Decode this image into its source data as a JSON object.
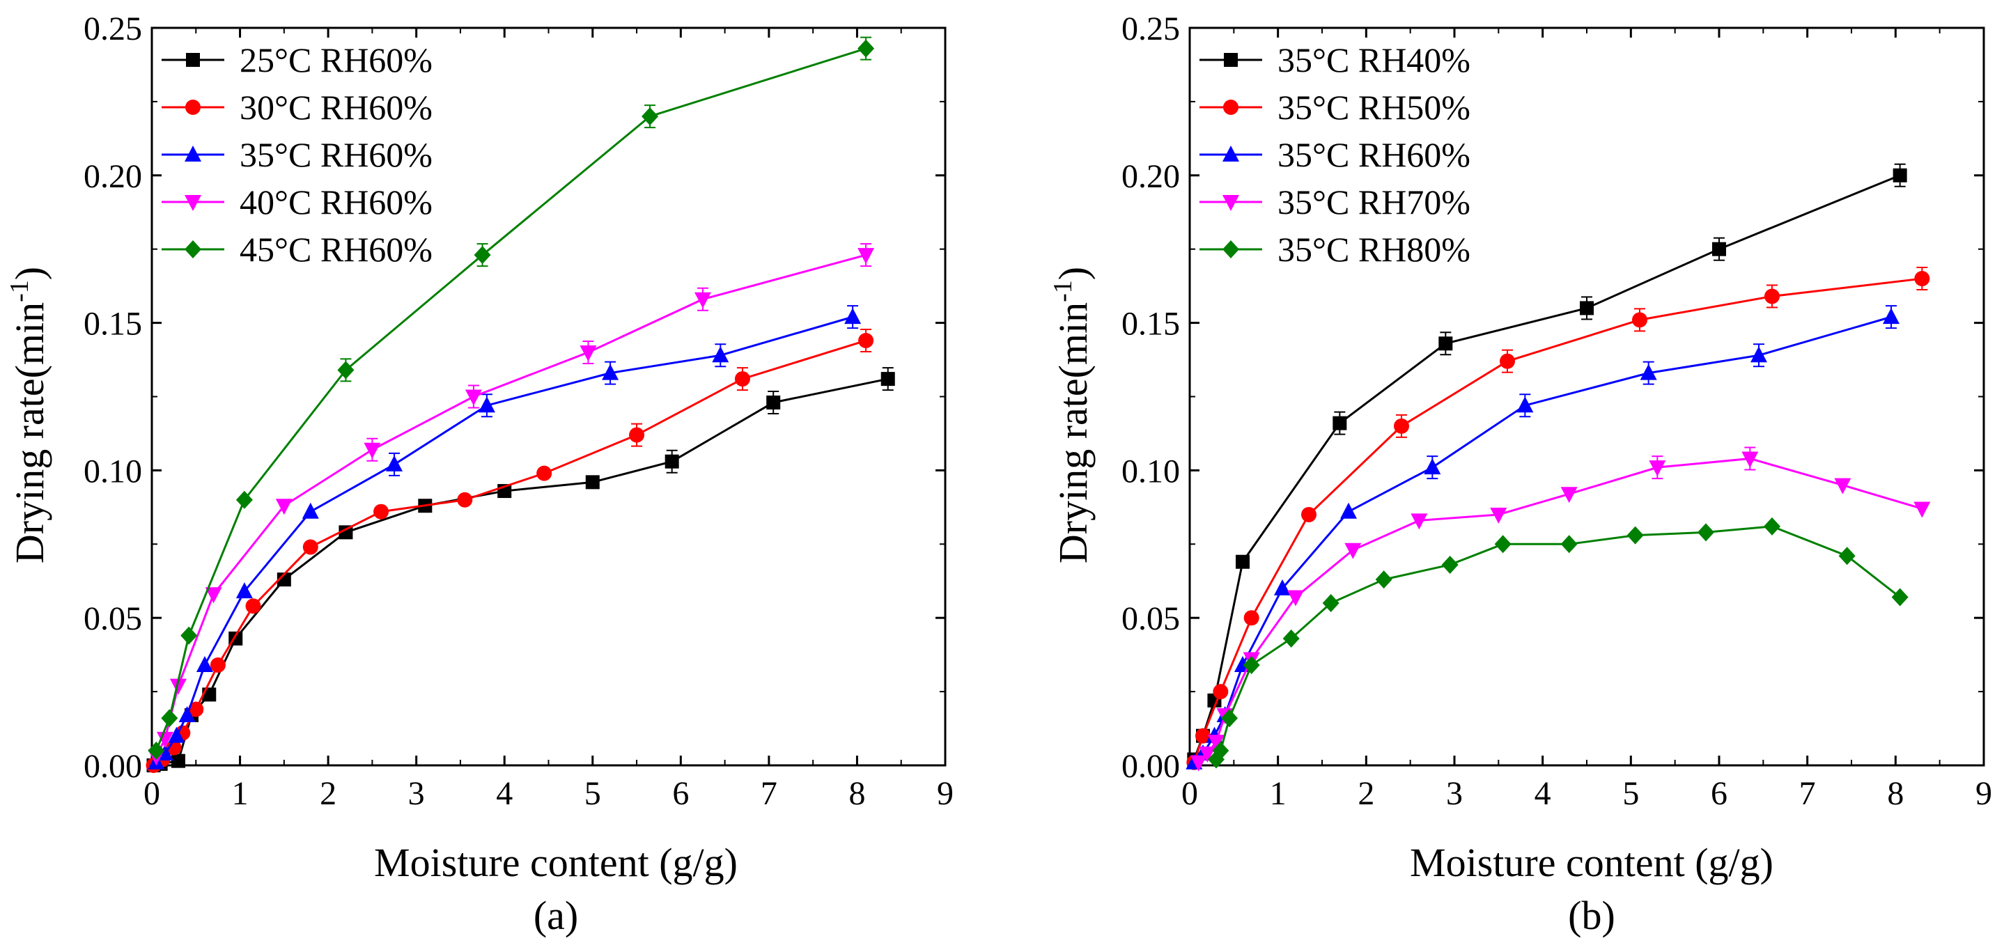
{
  "chart_data": [
    {
      "type": "line",
      "panel_label": "(a)",
      "xlabel": "Moisture content (g/g)",
      "ylabel_main": "Drying rate(min",
      "ylabel_sup": "-1",
      "ylabel_close": ")",
      "xlim": [
        0,
        9
      ],
      "ylim": [
        0,
        0.25
      ],
      "x_ticks": [
        "0",
        "1",
        "2",
        "3",
        "4",
        "5",
        "6",
        "7",
        "8",
        "9"
      ],
      "y_ticks": [
        "0.00",
        "0.05",
        "0.10",
        "0.15",
        "0.20",
        "0.25"
      ],
      "legend_position": "top-left",
      "series": [
        {
          "name": "25°C RH60%",
          "color": "#000000",
          "marker": "square",
          "x": [
            0.02,
            0.1,
            0.3,
            0.45,
            0.65,
            0.95,
            1.5,
            2.2,
            3.1,
            4.0,
            5.0,
            5.9,
            7.05,
            8.35
          ],
          "y": [
            0.0,
            0.0005,
            0.0015,
            0.017,
            0.024,
            0.043,
            0.063,
            0.079,
            0.088,
            0.093,
            0.096,
            0.103,
            0.123,
            0.131
          ]
        },
        {
          "name": "30°C RH60%",
          "color": "#ff0000",
          "marker": "circle",
          "x": [
            0.02,
            0.12,
            0.25,
            0.35,
            0.5,
            0.75,
            1.15,
            1.8,
            2.6,
            3.55,
            4.45,
            5.5,
            6.7,
            8.1
          ],
          "y": [
            0.0,
            0.002,
            0.006,
            0.011,
            0.019,
            0.034,
            0.054,
            0.074,
            0.086,
            0.09,
            0.099,
            0.112,
            0.131,
            0.144
          ]
        },
        {
          "name": "35°C RH60%",
          "color": "#0000ff",
          "marker": "triangle-up",
          "x": [
            0.05,
            0.15,
            0.28,
            0.4,
            0.6,
            1.05,
            1.8,
            2.75,
            3.8,
            5.2,
            6.45,
            7.95
          ],
          "y": [
            0.001,
            0.004,
            0.01,
            0.017,
            0.034,
            0.059,
            0.086,
            0.102,
            0.122,
            0.133,
            0.139,
            0.152
          ]
        },
        {
          "name": "40°C RH60%",
          "color": "#ff00ff",
          "marker": "triangle-down",
          "x": [
            0.05,
            0.15,
            0.3,
            0.7,
            1.5,
            2.5,
            3.65,
            4.95,
            6.25,
            8.1
          ],
          "y": [
            0.003,
            0.009,
            0.027,
            0.058,
            0.088,
            0.107,
            0.125,
            0.14,
            0.158,
            0.173
          ]
        },
        {
          "name": "45°C RH60%",
          "color": "#008000",
          "marker": "diamond",
          "x": [
            0.05,
            0.2,
            0.42,
            1.05,
            2.2,
            3.75,
            5.65,
            8.1
          ],
          "y": [
            0.005,
            0.016,
            0.044,
            0.09,
            0.134,
            0.173,
            0.22,
            0.243
          ]
        }
      ]
    },
    {
      "type": "line",
      "panel_label": "(b)",
      "xlabel": "Moisture content (g/g)",
      "ylabel_main": "Drying rate(min",
      "ylabel_sup": "-1",
      "ylabel_close": ")",
      "xlim": [
        0,
        9
      ],
      "ylim": [
        0,
        0.25
      ],
      "x_ticks": [
        "0",
        "1",
        "2",
        "3",
        "4",
        "5",
        "6",
        "7",
        "8",
        "9"
      ],
      "y_ticks": [
        "0.00",
        "0.05",
        "0.10",
        "0.15",
        "0.20",
        "0.25"
      ],
      "legend_position": "top-left",
      "series": [
        {
          "name": "35°C RH40%",
          "color": "#000000",
          "marker": "square",
          "x": [
            0.05,
            0.15,
            0.28,
            0.6,
            1.7,
            2.9,
            4.5,
            6.0,
            8.05
          ],
          "y": [
            0.002,
            0.01,
            0.022,
            0.069,
            0.116,
            0.143,
            0.155,
            0.175,
            0.2
          ]
        },
        {
          "name": "35°C RH50%",
          "color": "#ff0000",
          "marker": "circle",
          "x": [
            0.05,
            0.15,
            0.35,
            0.7,
            1.35,
            2.4,
            3.6,
            5.1,
            6.6,
            8.3
          ],
          "y": [
            0.001,
            0.01,
            0.025,
            0.05,
            0.085,
            0.115,
            0.137,
            0.151,
            0.159,
            0.165
          ]
        },
        {
          "name": "35°C RH60%",
          "color": "#0000ff",
          "marker": "triangle-up",
          "x": [
            0.05,
            0.15,
            0.28,
            0.4,
            0.6,
            1.05,
            1.8,
            2.75,
            3.8,
            5.2,
            6.45,
            7.95
          ],
          "y": [
            0.001,
            0.004,
            0.01,
            0.017,
            0.034,
            0.06,
            0.086,
            0.101,
            0.122,
            0.133,
            0.139,
            0.152
          ]
        },
        {
          "name": "35°C RH70%",
          "color": "#ff00ff",
          "marker": "triangle-down",
          "x": [
            0.1,
            0.2,
            0.3,
            0.4,
            0.7,
            1.2,
            1.85,
            2.6,
            3.5,
            4.3,
            5.3,
            6.35,
            7.4,
            8.3
          ],
          "y": [
            0.001,
            0.004,
            0.008,
            0.017,
            0.036,
            0.057,
            0.073,
            0.083,
            0.085,
            0.092,
            0.101,
            0.104,
            0.095,
            0.087
          ]
        },
        {
          "name": "35°C RH80%",
          "color": "#008000",
          "marker": "diamond",
          "x": [
            0.3,
            0.35,
            0.45,
            0.7,
            1.15,
            1.6,
            2.2,
            2.95,
            3.55,
            4.3,
            5.05,
            5.85,
            6.6,
            7.45,
            8.05
          ],
          "y": [
            0.002,
            0.005,
            0.016,
            0.034,
            0.043,
            0.055,
            0.063,
            0.068,
            0.075,
            0.075,
            0.078,
            0.079,
            0.081,
            0.071,
            0.057
          ]
        }
      ]
    }
  ]
}
